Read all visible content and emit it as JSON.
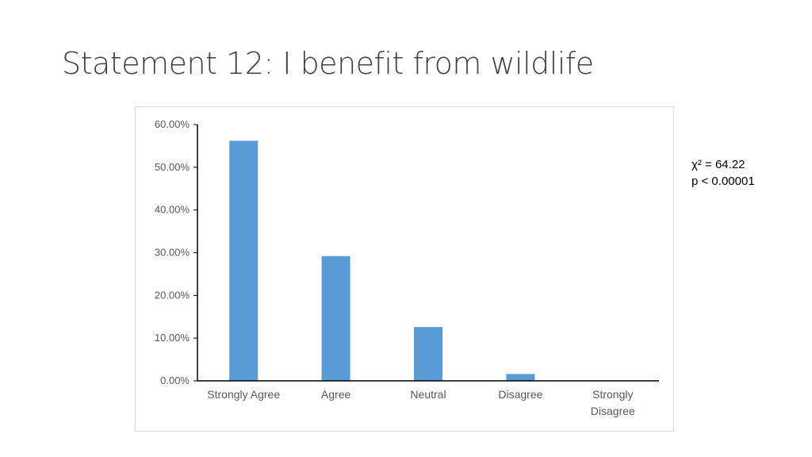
{
  "slide": {
    "title": "Statement 12:  I benefit from wildlife"
  },
  "annotation": {
    "line1": "χ² = 64.22",
    "line2": "p < 0.00001"
  },
  "chart_data": {
    "type": "bar",
    "categories": [
      "Strongly Agree",
      "Agree",
      "Neutral",
      "Disagree",
      "Strongly Disagree"
    ],
    "values": [
      56.2,
      29.2,
      12.6,
      1.6,
      0.0
    ],
    "ylim": [
      0,
      60
    ],
    "ytick_values": [
      0,
      10,
      20,
      30,
      40,
      50,
      60
    ],
    "ytick_labels": [
      "0.00%",
      "10.00%",
      "20.00%",
      "30.00%",
      "40.00%",
      "50.00%",
      "60.00%"
    ],
    "bar_color": "#5b9bd5",
    "grid": false,
    "legend": "none",
    "title": "",
    "xlabel": "",
    "ylabel": ""
  }
}
